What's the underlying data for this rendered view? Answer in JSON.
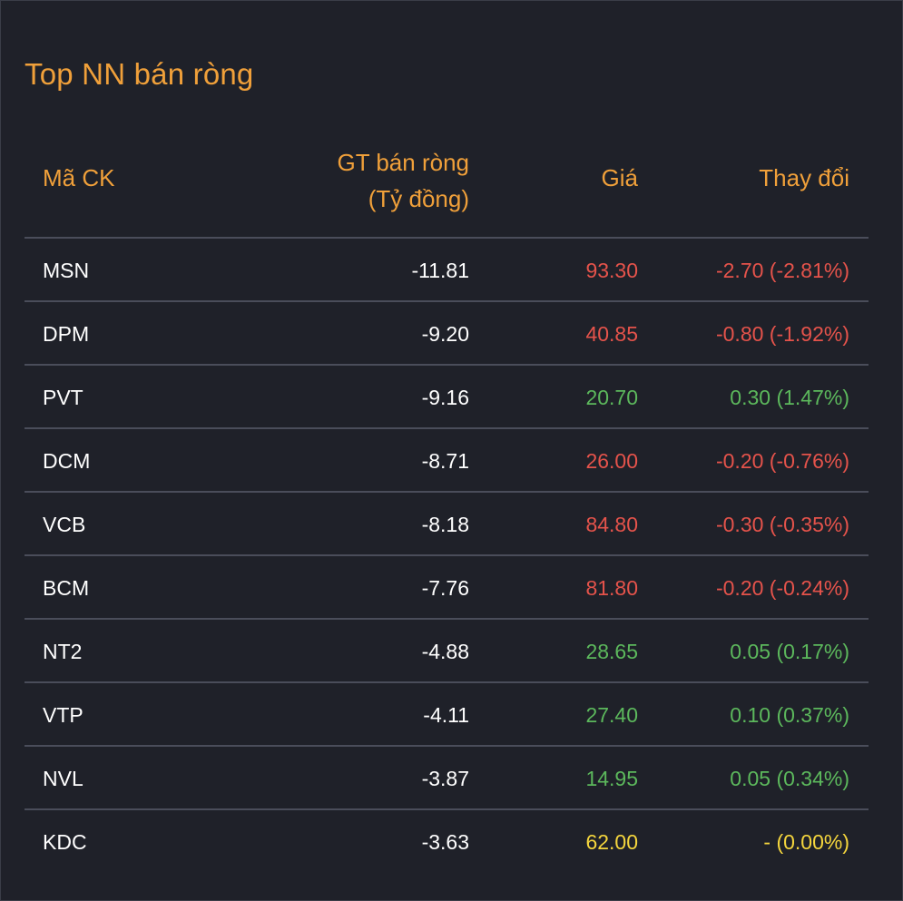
{
  "title": "Top NN bán ròng",
  "columns": {
    "symbol": "Mã CK",
    "value_line1": "GT bán ròng",
    "value_line2": "(Tỷ đồng)",
    "price": "Giá",
    "change": "Thay đổi"
  },
  "colors": {
    "background": "#1f2129",
    "accent": "#f0a03a",
    "down": "#e5534b",
    "up": "#5cb85c",
    "unchanged": "#f5d63d",
    "divider": "#4a4d5a"
  },
  "rows": [
    {
      "symbol": "MSN",
      "value": "-11.81",
      "price": "93.30",
      "change": "-2.70 (-2.81%)",
      "status": "down"
    },
    {
      "symbol": "DPM",
      "value": "-9.20",
      "price": "40.85",
      "change": "-0.80 (-1.92%)",
      "status": "down"
    },
    {
      "symbol": "PVT",
      "value": "-9.16",
      "price": "20.70",
      "change": "0.30 (1.47%)",
      "status": "up"
    },
    {
      "symbol": "DCM",
      "value": "-8.71",
      "price": "26.00",
      "change": "-0.20 (-0.76%)",
      "status": "down"
    },
    {
      "symbol": "VCB",
      "value": "-8.18",
      "price": "84.80",
      "change": "-0.30 (-0.35%)",
      "status": "down"
    },
    {
      "symbol": "BCM",
      "value": "-7.76",
      "price": "81.80",
      "change": "-0.20 (-0.24%)",
      "status": "down"
    },
    {
      "symbol": "NT2",
      "value": "-4.88",
      "price": "28.65",
      "change": "0.05 (0.17%)",
      "status": "up"
    },
    {
      "symbol": "VTP",
      "value": "-4.11",
      "price": "27.40",
      "change": "0.10 (0.37%)",
      "status": "up"
    },
    {
      "symbol": "NVL",
      "value": "-3.87",
      "price": "14.95",
      "change": "0.05 (0.34%)",
      "status": "up"
    },
    {
      "symbol": "KDC",
      "value": "-3.63",
      "price": "62.00",
      "change": "- (0.00%)",
      "status": "unchanged"
    }
  ]
}
